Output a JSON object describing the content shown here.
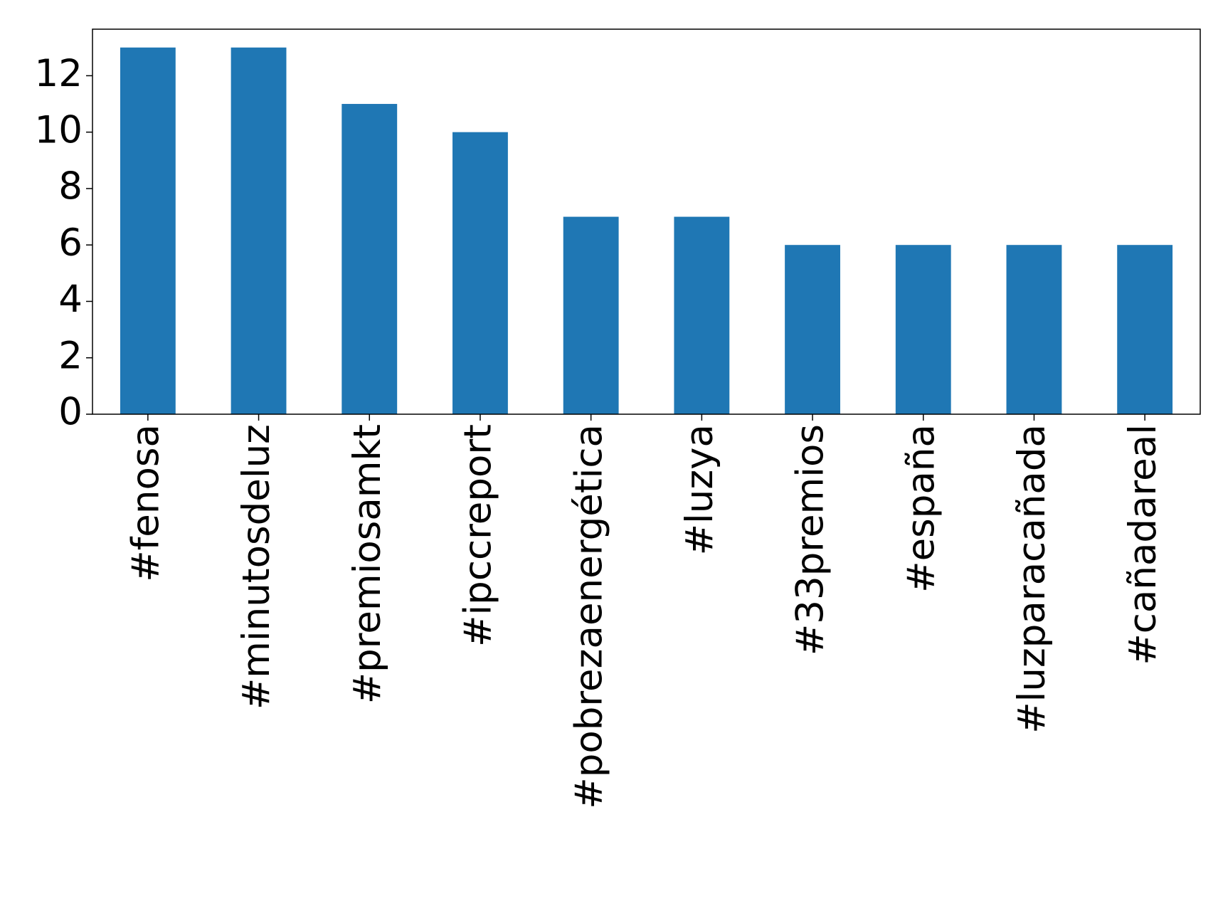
{
  "chart_data": {
    "type": "bar",
    "categories": [
      "#fenosa",
      "#minutosdeluz",
      "#premiosamkt",
      "#ipccreport",
      "#pobrezaenergética",
      "#luzya",
      "#33premios",
      "#españa",
      "#luzparacañada",
      "#cañadareal"
    ],
    "values": [
      13,
      13,
      11,
      10,
      7,
      7,
      6,
      6,
      6,
      6
    ],
    "color": "#1f77b4",
    "ylim": [
      0,
      13.65
    ],
    "yticks": [
      0,
      2,
      4,
      6,
      8,
      10,
      12
    ],
    "grid": false
  }
}
